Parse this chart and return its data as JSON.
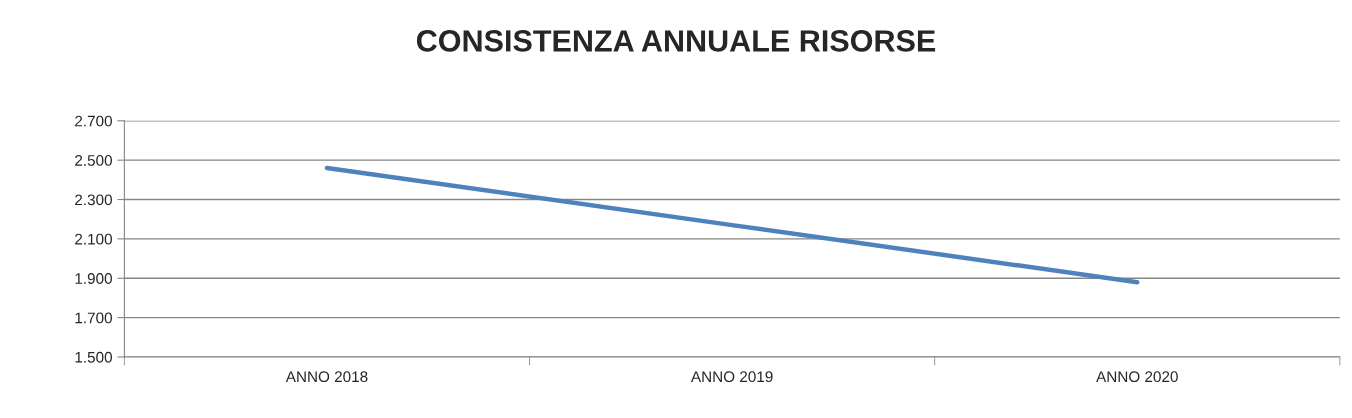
{
  "chart_data": {
    "type": "line",
    "title": "CONSISTENZA ANNUALE RISORSE",
    "categories": [
      "ANNO 2018",
      "ANNO 2019",
      "ANNO 2020"
    ],
    "series": [
      {
        "color": "#4f81bd",
        "values": [
          2460,
          2170,
          1880
        ]
      }
    ],
    "ylim": [
      1500,
      2700
    ],
    "yticks": [
      {
        "value": 1500,
        "label": "1.500"
      },
      {
        "value": 1700,
        "label": "1.700"
      },
      {
        "value": 1900,
        "label": "1.900"
      },
      {
        "value": 2100,
        "label": "2.100"
      },
      {
        "value": 2300,
        "label": "2.300"
      },
      {
        "value": 2500,
        "label": "2.500"
      },
      {
        "value": 2700,
        "label": "2.700"
      }
    ],
    "grid": "y",
    "marker": "none",
    "line_style": "solid"
  }
}
